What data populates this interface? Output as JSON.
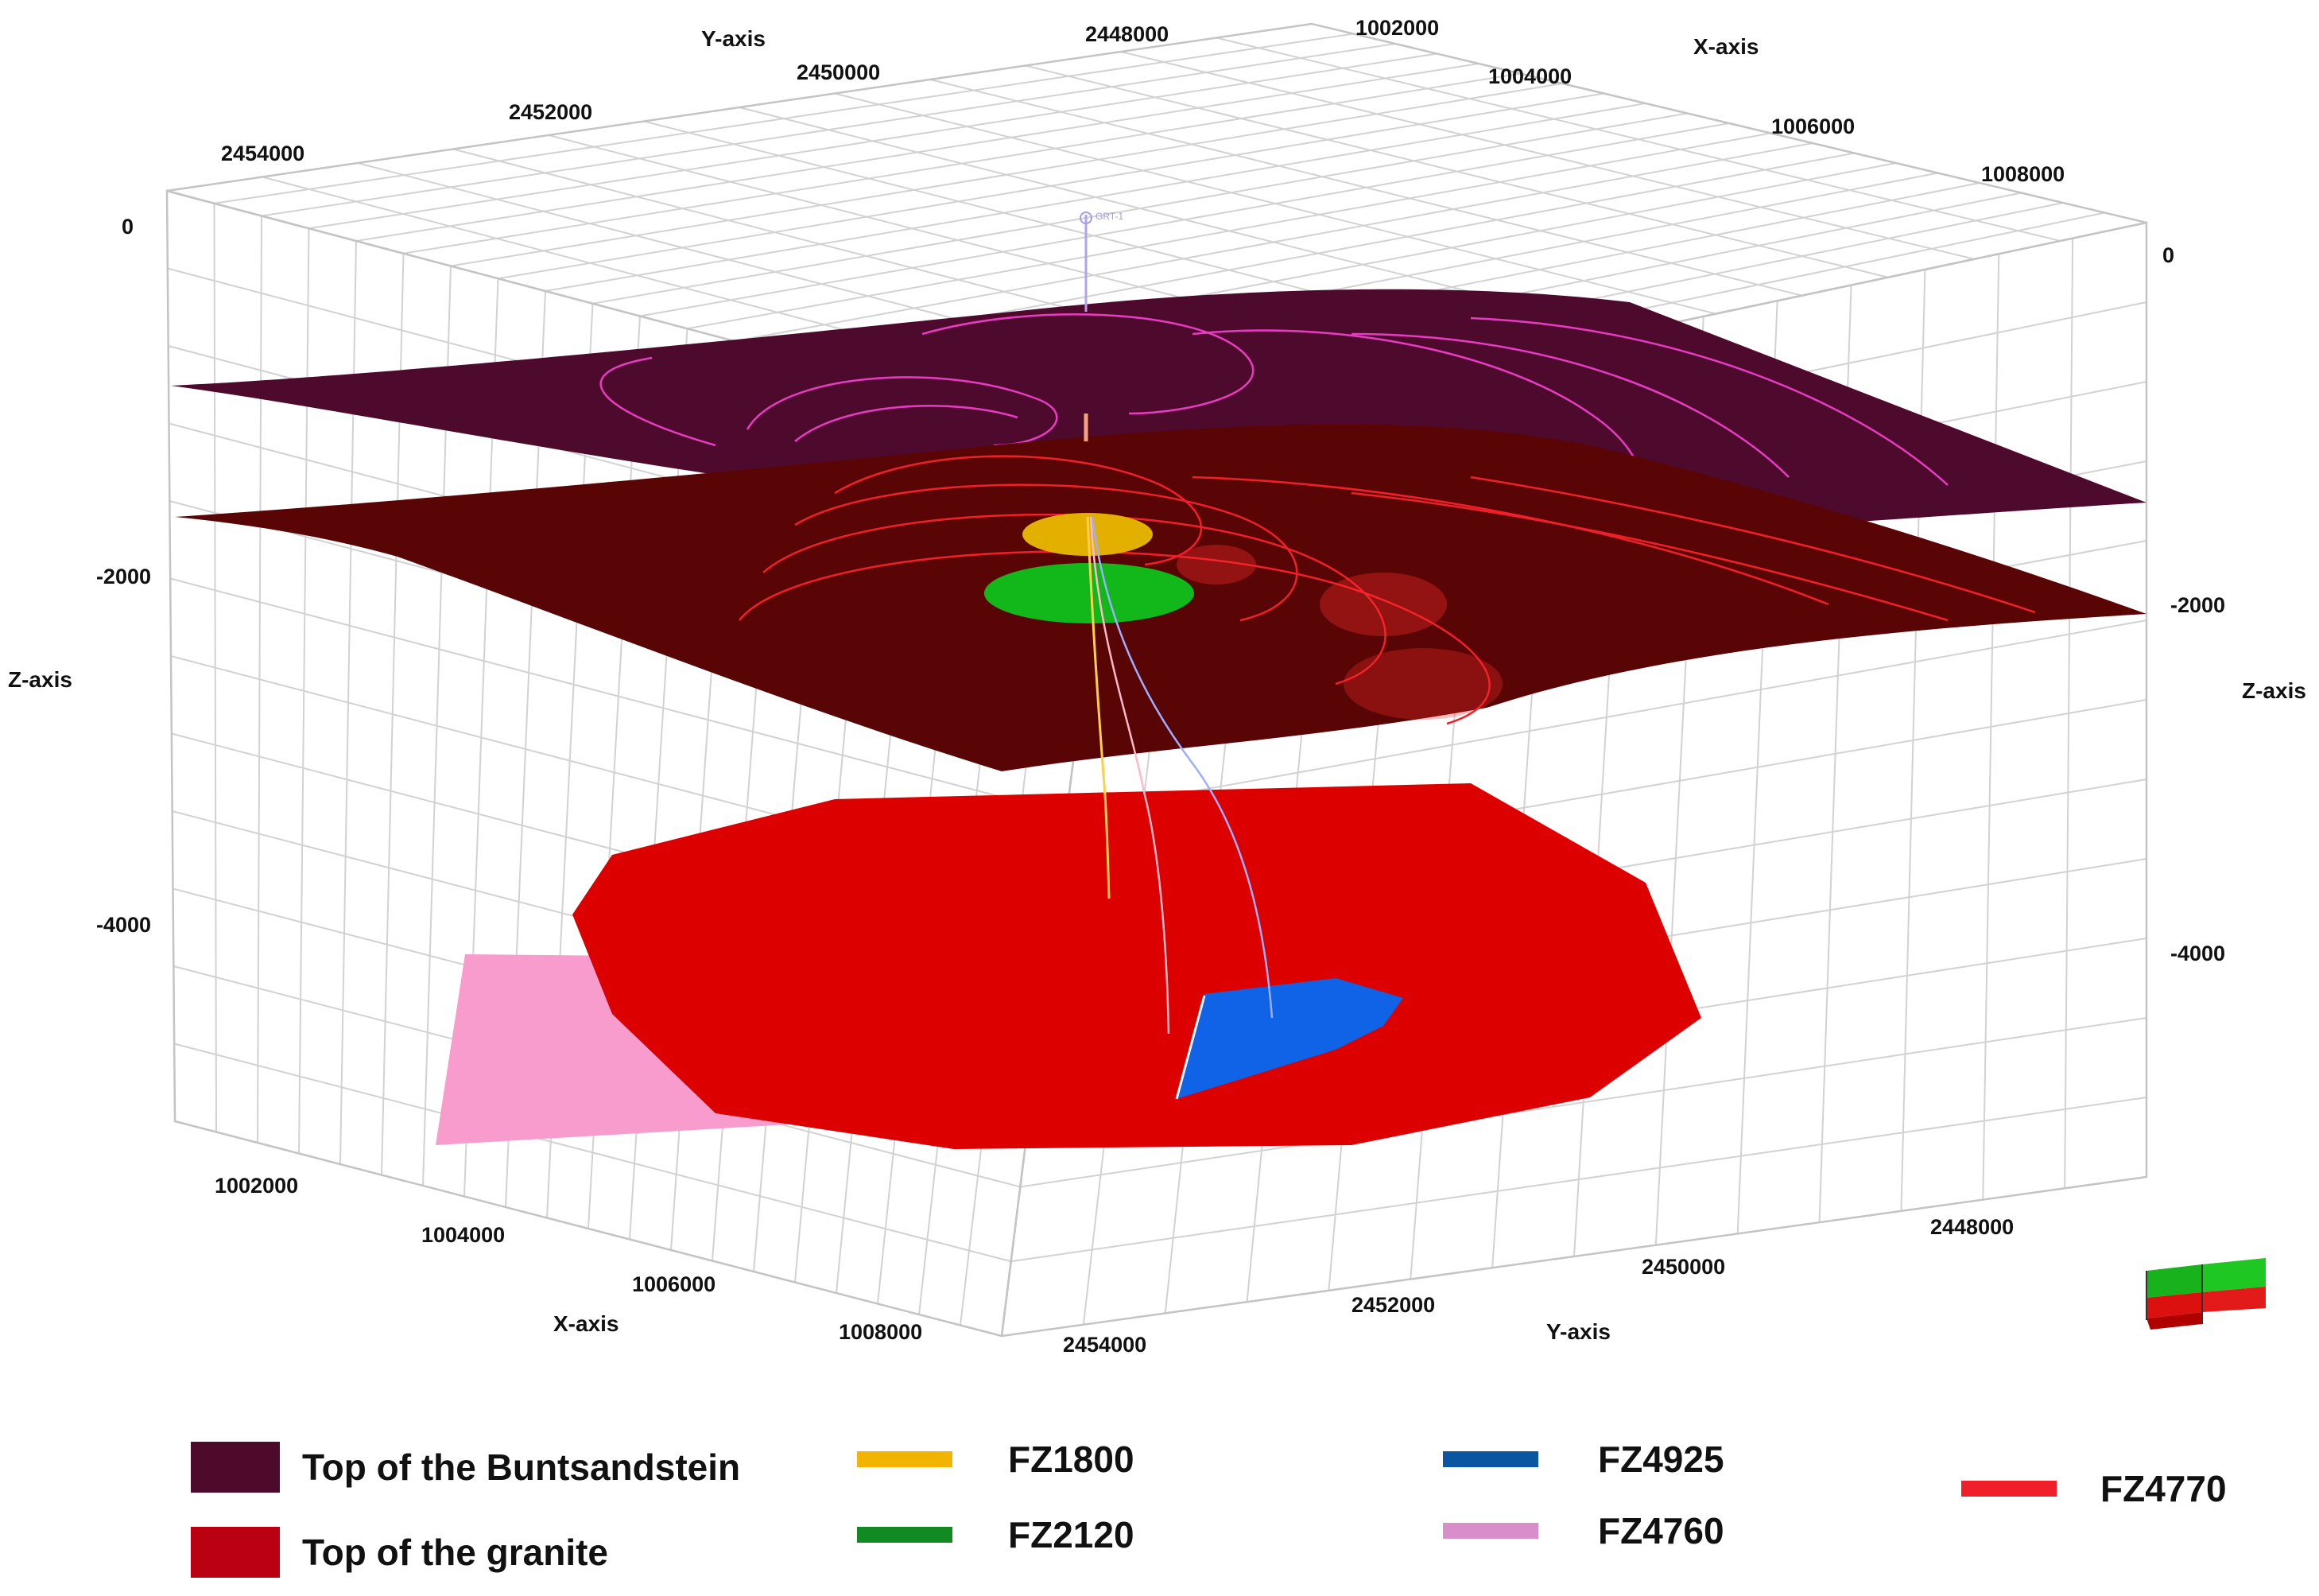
{
  "axes": {
    "y_axis_label": "Y-axis",
    "x_axis_label": "X-axis",
    "z_axis_label": "Z-axis",
    "top_y_ticks": [
      "2454000",
      "2452000",
      "2450000",
      "2448000"
    ],
    "top_x_ticks": [
      "1002000",
      "1004000",
      "1006000",
      "1008000"
    ],
    "bottom_x_ticks": [
      "1002000",
      "1004000",
      "1006000",
      "1008000"
    ],
    "bottom_y_ticks": [
      "2454000",
      "2452000",
      "2450000",
      "2448000"
    ],
    "left_z_ticks": [
      "0",
      "-2000",
      "-4000"
    ],
    "right_z_ticks": [
      "0",
      "-2000",
      "-4000"
    ]
  },
  "well_label": "GRT-1",
  "surfaces": {
    "buntsandstein": {
      "color": "#4e0a2c",
      "contour_color": "#e83bc4"
    },
    "granite": {
      "color": "#5a0505",
      "contour_color": "#f0202a"
    }
  },
  "zones": {
    "fz1800": {
      "color": "#e4b000"
    },
    "fz2120": {
      "color": "#12b81a"
    },
    "fz4760": {
      "color": "#f79ccc"
    },
    "fz4770": {
      "color": "#dd0000"
    },
    "fz4925": {
      "color": "#1062e6"
    }
  },
  "legend": {
    "buntsandstein": {
      "label": "Top of the Buntsandstein",
      "color": "#4d0a2a"
    },
    "granite": {
      "label": "Top of the granite",
      "color": "#bb0012"
    },
    "fz1800": {
      "label": "FZ1800",
      "color": "#f2b400"
    },
    "fz2120": {
      "label": "FZ2120",
      "color": "#118a22"
    },
    "fz4925": {
      "label": "FZ4925",
      "color": "#0b56a3"
    },
    "fz4760": {
      "label": "FZ4760",
      "color": "#d98dcb"
    },
    "fz4770": {
      "label": "FZ4770",
      "color": "#f0202a"
    }
  }
}
